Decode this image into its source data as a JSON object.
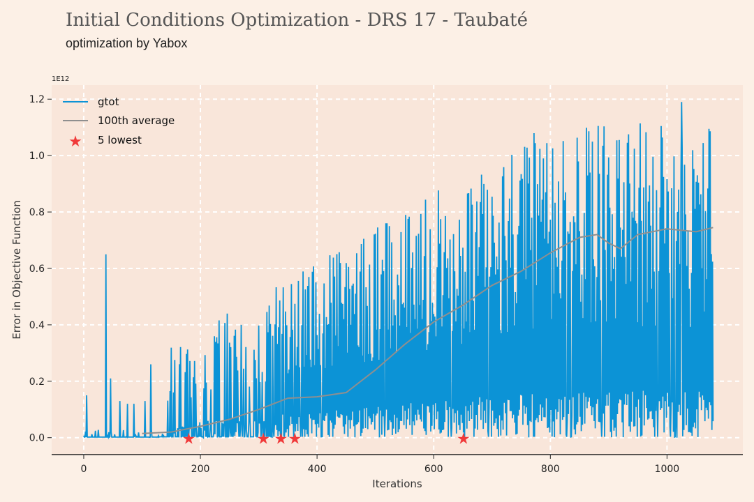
{
  "header": {
    "title": "Initial Conditions Optimization - DRS 17 - Taubaté",
    "subtitle": "optimization by Yabox"
  },
  "chart_data": {
    "type": "line",
    "xlabel": "Iterations",
    "ylabel": "Error in Objective Function",
    "y_scale_label": "1E12",
    "xlim": [
      -55,
      1130
    ],
    "ylim": [
      -0.06,
      1.25
    ],
    "xticks": [
      0,
      200,
      400,
      600,
      800,
      1000
    ],
    "yticks": [
      0.0,
      0.2,
      0.4,
      0.6,
      0.8,
      1.0,
      1.2
    ],
    "xtick_labels": [
      "0",
      "200",
      "400",
      "600",
      "800",
      "1000"
    ],
    "ytick_labels": [
      "0.0",
      "0.2",
      "0.4",
      "0.6",
      "0.8",
      "1.0",
      "1.2"
    ],
    "grid": true,
    "legend_position": "top-left",
    "colors": {
      "gtot": "#0c93d6",
      "average": "#8f8f8f",
      "lowest": "#f03a3a",
      "plot_bg": "#f9e6da",
      "page_bg": "#fcf0e6"
    },
    "series": [
      {
        "name": "gtot",
        "style": "line",
        "n_points": 1080,
        "value_range": [
          0.0,
          1.19
        ],
        "peak_x": 1025,
        "peak_value": 1.19
      },
      {
        "name": "100th average",
        "style": "line",
        "x": [
          100,
          150,
          200,
          250,
          300,
          350,
          400,
          450,
          500,
          550,
          600,
          650,
          700,
          750,
          800,
          850,
          880,
          900,
          920,
          950,
          1000,
          1050,
          1079
        ],
        "y": [
          0.015,
          0.02,
          0.04,
          0.065,
          0.1,
          0.14,
          0.145,
          0.16,
          0.24,
          0.33,
          0.41,
          0.47,
          0.54,
          0.59,
          0.655,
          0.71,
          0.72,
          0.69,
          0.67,
          0.72,
          0.74,
          0.73,
          0.745
        ]
      },
      {
        "name": "5 lowest",
        "style": "marker",
        "x": [
          180,
          308,
          338,
          362,
          651
        ],
        "y": [
          0.0,
          0.0,
          0.0,
          0.0,
          0.0
        ]
      }
    ]
  }
}
